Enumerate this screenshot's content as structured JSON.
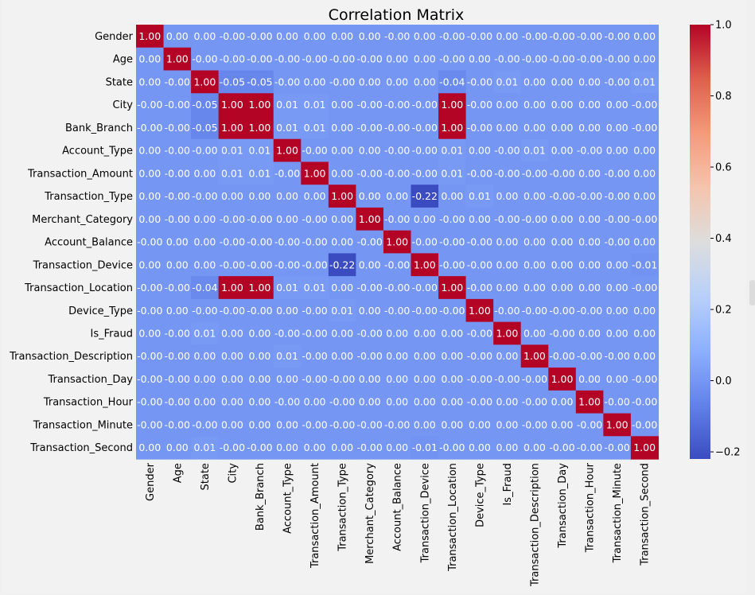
{
  "chart_data": {
    "type": "heatmap",
    "title": "Correlation Matrix",
    "colormap": "coolwarm",
    "vmin": -0.22,
    "vmax": 1.0,
    "labels": [
      "Gender",
      "Age",
      "State",
      "City",
      "Bank_Branch",
      "Account_Type",
      "Transaction_Amount",
      "Transaction_Type",
      "Merchant_Category",
      "Account_Balance",
      "Transaction_Device",
      "Transaction_Location",
      "Device_Type",
      "Is_Fraud",
      "Transaction_Description",
      "Transaction_Day",
      "Transaction_Hour",
      "Transaction_Minute",
      "Transaction_Second"
    ],
    "cell_text": [
      [
        "1.00",
        "0.00",
        "0.00",
        "-0.00",
        "-0.00",
        "0.00",
        "0.00",
        "0.00",
        "0.00",
        "-0.00",
        "0.00",
        "-0.00",
        "-0.00",
        "0.00",
        "-0.00",
        "-0.00",
        "-0.00",
        "-0.00",
        "0.00"
      ],
      [
        "0.00",
        "1.00",
        "-0.00",
        "-0.00",
        "-0.00",
        "-0.00",
        "-0.00",
        "-0.00",
        "-0.00",
        "0.00",
        "0.00",
        "-0.00",
        "0.00",
        "-0.00",
        "-0.00",
        "-0.00",
        "-0.00",
        "-0.00",
        "0.00"
      ],
      [
        "0.00",
        "-0.00",
        "1.00",
        "-0.05",
        "-0.05",
        "-0.00",
        "0.00",
        "-0.00",
        "0.00",
        "0.00",
        "0.00",
        "-0.04",
        "-0.00",
        "0.01",
        "0.00",
        "0.00",
        "0.00",
        "-0.00",
        "0.01"
      ],
      [
        "-0.00",
        "-0.00",
        "-0.05",
        "1.00",
        "1.00",
        "0.01",
        "0.01",
        "0.00",
        "-0.00",
        "-0.00",
        "-0.00",
        "1.00",
        "-0.00",
        "0.00",
        "0.00",
        "0.00",
        "0.00",
        "0.00",
        "-0.00"
      ],
      [
        "-0.00",
        "-0.00",
        "-0.05",
        "1.00",
        "1.00",
        "0.01",
        "0.01",
        "0.00",
        "-0.00",
        "-0.00",
        "-0.00",
        "1.00",
        "-0.00",
        "0.00",
        "0.00",
        "0.00",
        "0.00",
        "0.00",
        "-0.00"
      ],
      [
        "0.00",
        "-0.00",
        "-0.00",
        "0.01",
        "0.01",
        "1.00",
        "-0.00",
        "0.00",
        "0.00",
        "-0.00",
        "-0.00",
        "0.01",
        "0.00",
        "-0.00",
        "0.01",
        "0.00",
        "-0.00",
        "0.00",
        "0.00"
      ],
      [
        "0.00",
        "-0.00",
        "0.00",
        "0.01",
        "0.01",
        "-0.00",
        "1.00",
        "0.00",
        "-0.00",
        "-0.00",
        "-0.00",
        "0.01",
        "-0.00",
        "-0.00",
        "-0.00",
        "-0.00",
        "0.00",
        "-0.00",
        "0.00"
      ],
      [
        "0.00",
        "-0.00",
        "-0.00",
        "0.00",
        "0.00",
        "0.00",
        "0.00",
        "1.00",
        "0.00",
        "0.00",
        "-0.22",
        "0.00",
        "0.01",
        "0.00",
        "0.00",
        "-0.00",
        "-0.00",
        "-0.00",
        "0.00"
      ],
      [
        "0.00",
        "-0.00",
        "0.00",
        "-0.00",
        "-0.00",
        "0.00",
        "-0.00",
        "0.00",
        "1.00",
        "-0.00",
        "0.00",
        "-0.00",
        "0.00",
        "-0.00",
        "-0.00",
        "0.00",
        "0.00",
        "-0.00",
        "-0.00"
      ],
      [
        "-0.00",
        "0.00",
        "0.00",
        "-0.00",
        "-0.00",
        "-0.00",
        "-0.00",
        "0.00",
        "-0.00",
        "1.00",
        "-0.00",
        "-0.00",
        "-0.00",
        "0.00",
        "0.00",
        "0.00",
        "0.00",
        "-0.00",
        "0.00"
      ],
      [
        "0.00",
        "0.00",
        "0.00",
        "-0.00",
        "-0.00",
        "-0.00",
        "-0.00",
        "-0.22",
        "0.00",
        "-0.00",
        "1.00",
        "-0.00",
        "-0.00",
        "0.00",
        "0.00",
        "0.00",
        "0.00",
        "0.00",
        "-0.01"
      ],
      [
        "-0.00",
        "-0.00",
        "-0.04",
        "1.00",
        "1.00",
        "0.01",
        "0.01",
        "0.00",
        "-0.00",
        "-0.00",
        "-0.00",
        "1.00",
        "-0.00",
        "0.00",
        "0.00",
        "0.00",
        "0.00",
        "0.00",
        "-0.00"
      ],
      [
        "-0.00",
        "0.00",
        "-0.00",
        "-0.00",
        "-0.00",
        "0.00",
        "-0.00",
        "0.01",
        "0.00",
        "-0.00",
        "-0.00",
        "-0.00",
        "1.00",
        "-0.00",
        "-0.00",
        "-0.00",
        "-0.00",
        "0.00",
        "0.00"
      ],
      [
        "0.00",
        "-0.00",
        "0.01",
        "0.00",
        "0.00",
        "-0.00",
        "-0.00",
        "0.00",
        "-0.00",
        "0.00",
        "0.00",
        "0.00",
        "-0.00",
        "1.00",
        "0.00",
        "-0.00",
        "0.00",
        "0.00",
        "0.00"
      ],
      [
        "-0.00",
        "-0.00",
        "0.00",
        "0.00",
        "0.00",
        "0.01",
        "-0.00",
        "0.00",
        "-0.00",
        "0.00",
        "0.00",
        "0.00",
        "-0.00",
        "0.00",
        "1.00",
        "-0.00",
        "-0.00",
        "-0.00",
        "0.00"
      ],
      [
        "-0.00",
        "-0.00",
        "0.00",
        "0.00",
        "0.00",
        "0.00",
        "-0.00",
        "-0.00",
        "0.00",
        "0.00",
        "0.00",
        "0.00",
        "-0.00",
        "-0.00",
        "-0.00",
        "1.00",
        "0.00",
        "0.00",
        "-0.00"
      ],
      [
        "-0.00",
        "-0.00",
        "0.00",
        "0.00",
        "0.00",
        "-0.00",
        "0.00",
        "-0.00",
        "0.00",
        "0.00",
        "0.00",
        "0.00",
        "-0.00",
        "0.00",
        "-0.00",
        "0.00",
        "1.00",
        "-0.00",
        "-0.00"
      ],
      [
        "-0.00",
        "-0.00",
        "-0.00",
        "0.00",
        "0.00",
        "0.00",
        "-0.00",
        "-0.00",
        "-0.00",
        "-0.00",
        "0.00",
        "0.00",
        "0.00",
        "0.00",
        "-0.00",
        "0.00",
        "-0.00",
        "1.00",
        "-0.00"
      ],
      [
        "0.00",
        "0.00",
        "0.01",
        "-0.00",
        "-0.00",
        "0.00",
        "0.00",
        "0.00",
        "-0.00",
        "0.00",
        "-0.01",
        "-0.00",
        "0.00",
        "0.00",
        "0.00",
        "-0.00",
        "-0.00",
        "-0.00",
        "1.00"
      ]
    ],
    "colorbar": {
      "ticks": [
        1.0,
        0.8,
        0.6,
        0.4,
        0.2,
        0.0,
        -0.2
      ],
      "tick_labels": [
        "1.0",
        "0.8",
        "0.6",
        "0.4",
        "0.2",
        "0.0",
        "−0.2"
      ]
    }
  }
}
